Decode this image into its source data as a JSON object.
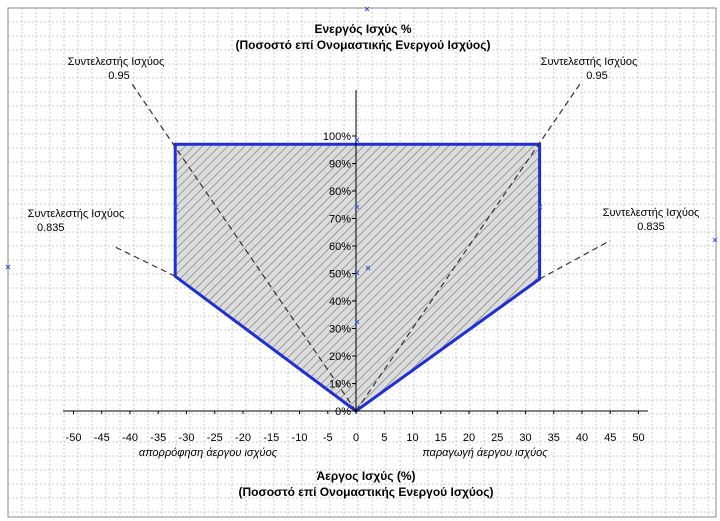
{
  "chart_data": {
    "type": "area",
    "title_line1": "Ενεργός Ισχύς %",
    "title_line2": "(Ποσοστό επί Ονομαστικής Ενεργού Ισχύος)",
    "xlabel_line1": "Άεργος Ισχύς (%)",
    "xlabel_line2": "(Ποσοστό επί Ονομαστικής Ενεργού Ισχύος)",
    "x_ticks": [
      "-50",
      "-45",
      "-40",
      "-35",
      "-30",
      "-25",
      "-20",
      "-15",
      "-10",
      "-5",
      "0",
      "5",
      "10",
      "15",
      "20",
      "25",
      "30",
      "35",
      "40",
      "45",
      "50"
    ],
    "y_ticks": [
      "0%",
      "10%",
      "20%",
      "30%",
      "40%",
      "50%",
      "60%",
      "70%",
      "80%",
      "90%",
      "100%"
    ],
    "xlim": [
      -50,
      50
    ],
    "ylim": [
      0,
      100
    ],
    "capability_region": [
      [
        0,
        0
      ],
      [
        -32,
        49
      ],
      [
        -32,
        97
      ],
      [
        32.5,
        97
      ],
      [
        32.5,
        48
      ],
      [
        0,
        0
      ]
    ],
    "pf_lines": [
      {
        "from": [
          0,
          0
        ],
        "to": [
          -40,
          120
        ]
      },
      {
        "from": [
          0,
          0
        ],
        "to": [
          40,
          120
        ]
      },
      {
        "from": [
          -32,
          49
        ],
        "to": [
          -43,
          60
        ]
      },
      {
        "from": [
          32.5,
          48
        ],
        "to": [
          45,
          62
        ]
      }
    ],
    "annotations": {
      "pf_095_left_line1": "Συντελεστής Ισχύος",
      "pf_095_left_line2": "0.95",
      "pf_095_right_line1": "Συντελεστής Ισχύος",
      "pf_095_right_line2": "0.95",
      "pf_0835_left_line1": "Συντελεστής Ισχύος",
      "pf_0835_left_line2": "0.835",
      "pf_0835_right_line1": "Συντελεστής Ισχύος",
      "pf_0835_right_line2": "0.835",
      "absorption": "απορρόφηση άεργου ισχύος",
      "production": "παραγωγή άεργου ισχύος"
    },
    "colors": {
      "region_border": "#1f2fd6",
      "hatch": "#8a8a8a",
      "grid": "#c8c8c8",
      "pf_line": "#333333"
    },
    "grid": true
  }
}
